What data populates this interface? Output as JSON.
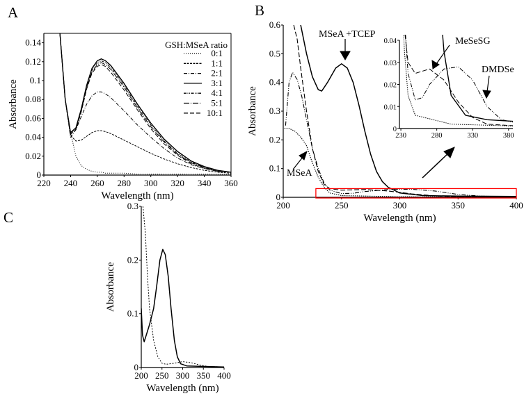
{
  "panel_labels": {
    "a": "A",
    "b": "B",
    "c": "C"
  },
  "colors": {
    "highlight_box": "#ff0000",
    "line": "#000000"
  },
  "chart_data": [
    {
      "id": "A",
      "type": "line",
      "xlabel": "Wavelength (nm)",
      "ylabel": "Absorbance",
      "xlim": [
        220,
        360
      ],
      "ylim": [
        0,
        0.15
      ],
      "xticks": [
        220,
        240,
        260,
        280,
        300,
        320,
        340,
        360
      ],
      "yticks": [
        0,
        0.02,
        0.04,
        0.06,
        0.08,
        0.1,
        0.12,
        0.14
      ],
      "ytick_labels": [
        "0",
        "0.02",
        "0.04",
        "0.06",
        "0.08",
        "0.1",
        "0.12",
        "0.14"
      ],
      "legend_title": "GSH:MSeA ratio",
      "legend_position": "top-right",
      "x": [
        232,
        236,
        240,
        244,
        248,
        252,
        256,
        260,
        263,
        266,
        270,
        280,
        290,
        300,
        310,
        320,
        330,
        340,
        350,
        360
      ],
      "series": [
        {
          "name": "0:1",
          "dash": "1,2",
          "values": [
            0.15,
            0.08,
            0.045,
            0.02,
            0.01,
            0.006,
            0.004,
            0.003,
            0.003,
            0.002,
            0.002,
            0.002,
            0.001,
            0.001,
            0.001,
            0.001,
            0.001,
            0.001,
            0.001,
            0.001
          ]
        },
        {
          "name": "1:1",
          "dash": "3,1.5",
          "values": [
            0.15,
            0.08,
            0.042,
            0.036,
            0.037,
            0.041,
            0.045,
            0.047,
            0.047,
            0.046,
            0.044,
            0.037,
            0.03,
            0.023,
            0.017,
            0.012,
            0.008,
            0.005,
            0.003,
            0.002
          ]
        },
        {
          "name": "2:1",
          "dash": "5,2,1,2",
          "values": [
            0.15,
            0.08,
            0.04,
            0.048,
            0.062,
            0.075,
            0.084,
            0.088,
            0.088,
            0.086,
            0.082,
            0.068,
            0.053,
            0.04,
            0.028,
            0.018,
            0.011,
            0.007,
            0.004,
            0.003
          ]
        },
        {
          "name": "3:1",
          "dash": "",
          "values": [
            0.15,
            0.08,
            0.045,
            0.05,
            0.07,
            0.095,
            0.113,
            0.121,
            0.123,
            0.121,
            0.116,
            0.097,
            0.075,
            0.055,
            0.038,
            0.025,
            0.015,
            0.009,
            0.005,
            0.003
          ]
        },
        {
          "name": "4:1",
          "dash": "4,1.5,1,1.5,1,1.5",
          "values": [
            0.15,
            0.08,
            0.044,
            0.05,
            0.069,
            0.094,
            0.111,
            0.119,
            0.121,
            0.119,
            0.114,
            0.095,
            0.073,
            0.053,
            0.036,
            0.023,
            0.014,
            0.008,
            0.005,
            0.003
          ]
        },
        {
          "name": "5:1",
          "dash": "8,2,1,2",
          "values": [
            0.15,
            0.08,
            0.043,
            0.049,
            0.068,
            0.092,
            0.109,
            0.117,
            0.119,
            0.117,
            0.112,
            0.093,
            0.071,
            0.051,
            0.035,
            0.022,
            0.013,
            0.008,
            0.004,
            0.003
          ]
        },
        {
          "name": "10:1",
          "dash": "6,3",
          "values": [
            0.15,
            0.08,
            0.043,
            0.048,
            0.067,
            0.091,
            0.108,
            0.115,
            0.117,
            0.115,
            0.109,
            0.09,
            0.069,
            0.049,
            0.033,
            0.021,
            0.012,
            0.007,
            0.004,
            0.003
          ]
        }
      ]
    },
    {
      "id": "B",
      "type": "line",
      "xlabel": "Wavelength (nm)",
      "ylabel": "Absorbance",
      "xlim": [
        200,
        400
      ],
      "ylim": [
        0,
        0.6
      ],
      "xticks": [
        200,
        250,
        300,
        350,
        400
      ],
      "yticks": [
        0,
        0.1,
        0.2,
        0.3,
        0.4,
        0.5,
        0.6
      ],
      "ytick_labels": [
        "0",
        "0.1",
        "0.2",
        "0.3",
        "0.4",
        "0.5",
        "0.6"
      ],
      "annotations": [
        "MSeA +TCEP",
        "MSeA",
        "MeSeSG",
        "DMDSe"
      ],
      "series": [
        {
          "name": "MSeA",
          "dash": "1.5,1.5",
          "points": [
            [
              201,
              0.24
            ],
            [
              205,
              0.24
            ],
            [
              210,
              0.23
            ],
            [
              215,
              0.21
            ],
            [
              220,
              0.18
            ],
            [
              225,
              0.12
            ],
            [
              230,
              0.07
            ],
            [
              235,
              0.035
            ],
            [
              240,
              0.015
            ],
            [
              250,
              0.006
            ],
            [
              300,
              0.002
            ],
            [
              400,
              0.001
            ]
          ]
        },
        {
          "name": "MSeA +TCEP",
          "dash": "",
          "points": [
            [
              215,
              0.6
            ],
            [
              220,
              0.5
            ],
            [
              225,
              0.42
            ],
            [
              230,
              0.375
            ],
            [
              233,
              0.37
            ],
            [
              238,
              0.4
            ],
            [
              245,
              0.45
            ],
            [
              250,
              0.465
            ],
            [
              255,
              0.45
            ],
            [
              260,
              0.4
            ],
            [
              265,
              0.32
            ],
            [
              270,
              0.23
            ],
            [
              275,
              0.15
            ],
            [
              280,
              0.09
            ],
            [
              285,
              0.055
            ],
            [
              290,
              0.035
            ],
            [
              300,
              0.015
            ],
            [
              320,
              0.006
            ],
            [
              350,
              0.004
            ],
            [
              400,
              0.003
            ]
          ]
        },
        {
          "name": "MeSeSG",
          "dash": "7,3",
          "points": [
            [
              209,
              0.6
            ],
            [
              212,
              0.55
            ],
            [
              215,
              0.45
            ],
            [
              220,
              0.3
            ],
            [
              225,
              0.17
            ],
            [
              230,
              0.09
            ],
            [
              235,
              0.045
            ],
            [
              240,
              0.03
            ],
            [
              250,
              0.025
            ],
            [
              270,
              0.027
            ],
            [
              290,
              0.022
            ],
            [
              310,
              0.012
            ],
            [
              330,
              0.005
            ],
            [
              350,
              0.002
            ],
            [
              400,
              0.001
            ]
          ]
        },
        {
          "name": "DMDSe",
          "dash": "6,2,1,2,1,2",
          "points": [
            [
              202,
              0.25
            ],
            [
              205,
              0.4
            ],
            [
              208,
              0.435
            ],
            [
              212,
              0.41
            ],
            [
              216,
              0.35
            ],
            [
              220,
              0.27
            ],
            [
              225,
              0.17
            ],
            [
              230,
              0.1
            ],
            [
              235,
              0.05
            ],
            [
              240,
              0.025
            ],
            [
              250,
              0.013
            ],
            [
              260,
              0.014
            ],
            [
              270,
              0.02
            ],
            [
              290,
              0.027
            ],
            [
              310,
              0.028
            ],
            [
              330,
              0.022
            ],
            [
              350,
              0.01
            ],
            [
              370,
              0.004
            ],
            [
              400,
              0.002
            ]
          ]
        }
      ],
      "highlight_region": {
        "x": [
          228,
          400
        ],
        "y": [
          0,
          0.04
        ]
      },
      "inset": {
        "xlim": [
          228,
          386
        ],
        "ylim": [
          0,
          0.04
        ],
        "xticks": [
          230,
          280,
          330,
          380
        ],
        "yticks": [
          0,
          0.01,
          0.02,
          0.03,
          0.04
        ],
        "ytick_labels": [
          "0",
          "0.01",
          "0.02",
          "0.03",
          "0.04"
        ]
      }
    },
    {
      "id": "C",
      "type": "line",
      "xlabel": "Wavelength (nm)",
      "ylabel": "Absorbance",
      "xlim": [
        200,
        400
      ],
      "ylim": [
        0,
        0.3
      ],
      "xticks": [
        200,
        250,
        300,
        350,
        400
      ],
      "yticks": [
        0,
        0.1,
        0.2,
        0.3
      ],
      "ytick_labels": [
        "0",
        "0.1",
        "0.2",
        "0.3"
      ],
      "series": [
        {
          "name": "solid",
          "dash": "",
          "points": [
            [
              200,
              0.11
            ],
            [
              203,
              0.06
            ],
            [
              207,
              0.048
            ],
            [
              212,
              0.06
            ],
            [
              220,
              0.08
            ],
            [
              230,
              0.11
            ],
            [
              237,
              0.15
            ],
            [
              245,
              0.2
            ],
            [
              252,
              0.22
            ],
            [
              258,
              0.21
            ],
            [
              265,
              0.17
            ],
            [
              272,
              0.11
            ],
            [
              280,
              0.05
            ],
            [
              287,
              0.02
            ],
            [
              295,
              0.007
            ],
            [
              310,
              0.003
            ],
            [
              400,
              0.001
            ]
          ]
        },
        {
          "name": "dotted",
          "dash": "2,2",
          "points": [
            [
              204,
              0.3
            ],
            [
              210,
              0.25
            ],
            [
              215,
              0.17
            ],
            [
              220,
              0.11
            ],
            [
              230,
              0.05
            ],
            [
              240,
              0.02
            ],
            [
              250,
              0.008
            ],
            [
              260,
              0.006
            ],
            [
              280,
              0.008
            ],
            [
              300,
              0.011
            ],
            [
              320,
              0.009
            ],
            [
              340,
              0.005
            ],
            [
              360,
              0.002
            ],
            [
              400,
              0.001
            ]
          ]
        }
      ]
    }
  ]
}
